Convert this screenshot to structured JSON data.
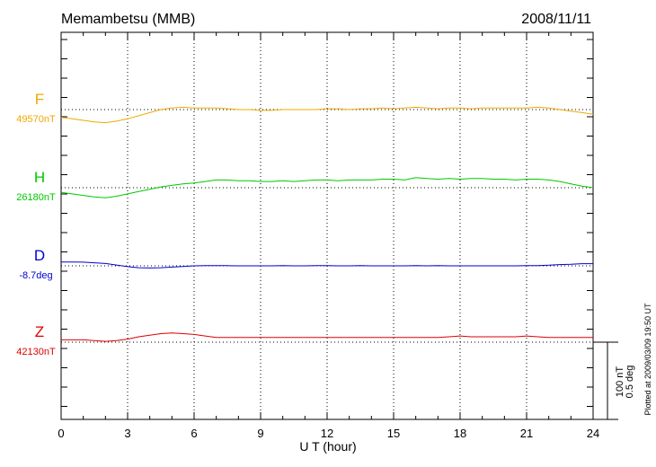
{
  "chart_data": {
    "type": "line",
    "title": "Memambetsu (MMB)",
    "date": "2008/11/11",
    "xlabel": "U T (hour)",
    "xlim": [
      0,
      24
    ],
    "xticks": [
      0,
      3,
      6,
      9,
      12,
      15,
      18,
      21,
      24
    ],
    "grid": true,
    "scale_bar": {
      "line1": "100 nT",
      "line2": "0.5 deg",
      "nT_per_unit": 100,
      "deg_per_unit": 0.5
    },
    "footer_note": "Plotted at 2009/03/09 19:50 UT",
    "series": [
      {
        "name": "F",
        "baseline_label": "49570nT",
        "color": "#f0a800",
        "x": [
          0,
          0.5,
          1,
          1.5,
          2,
          2.5,
          3,
          3.5,
          4,
          4.5,
          5,
          5.5,
          6,
          6.5,
          7,
          7.5,
          8,
          8.5,
          9,
          9.5,
          10,
          10.5,
          11,
          11.5,
          12,
          12.5,
          13,
          13.5,
          14,
          14.5,
          15,
          15.5,
          16,
          16.5,
          17,
          17.5,
          18,
          18.5,
          19,
          19.5,
          20,
          20.5,
          21,
          21.5,
          22,
          22.5,
          23,
          23.5,
          24
        ],
        "values": [
          -10,
          -12,
          -14,
          -16,
          -17,
          -15,
          -12,
          -8,
          -4,
          0,
          2,
          3,
          2,
          2,
          2,
          1,
          0,
          0,
          -1,
          -1,
          0,
          0,
          0,
          0,
          1,
          1,
          0,
          1,
          1,
          2,
          1,
          2,
          3,
          2,
          1,
          2,
          2,
          1,
          2,
          2,
          2,
          2,
          2,
          3,
          2,
          0,
          -2,
          -4,
          -6
        ]
      },
      {
        "name": "H",
        "baseline_label": "26180nT",
        "color": "#00c800",
        "x": [
          0,
          0.5,
          1,
          1.5,
          2,
          2.5,
          3,
          3.5,
          4,
          4.5,
          5,
          5.5,
          6,
          6.5,
          7,
          7.5,
          8,
          8.5,
          9,
          9.5,
          10,
          10.5,
          11,
          11.5,
          12,
          12.5,
          13,
          13.5,
          14,
          14.5,
          15,
          15.5,
          16,
          16.5,
          17,
          17.5,
          18,
          18.5,
          19,
          19.5,
          20,
          20.5,
          21,
          21.5,
          22,
          22.5,
          23,
          23.5,
          24
        ],
        "values": [
          -6,
          -8,
          -10,
          -12,
          -13,
          -11,
          -8,
          -5,
          -2,
          1,
          3,
          5,
          6,
          8,
          10,
          10,
          9,
          9,
          8,
          8,
          9,
          8,
          9,
          10,
          10,
          9,
          10,
          10,
          10,
          11,
          11,
          10,
          13,
          12,
          11,
          12,
          11,
          12,
          12,
          11,
          11,
          10,
          11,
          11,
          10,
          8,
          5,
          2,
          0
        ]
      },
      {
        "name": "D",
        "baseline_label": "-8.7deg",
        "color": "#0000d0",
        "x": [
          0,
          0.5,
          1,
          1.5,
          2,
          2.5,
          3,
          3.5,
          4,
          4.5,
          5,
          5.5,
          6,
          6.5,
          7,
          7.5,
          8,
          8.5,
          9,
          9.5,
          10,
          10.5,
          11,
          11.5,
          12,
          12.5,
          13,
          13.5,
          14,
          14.5,
          15,
          15.5,
          16,
          16.5,
          17,
          17.5,
          18,
          18.5,
          19,
          19.5,
          20,
          20.5,
          21,
          21.5,
          22,
          22.5,
          23,
          23.5,
          24
        ],
        "values": [
          0.025,
          0.025,
          0.024,
          0.02,
          0.015,
          0.005,
          -0.005,
          -0.012,
          -0.014,
          -0.012,
          -0.008,
          -0.004,
          0.0,
          0.001,
          0.001,
          0.001,
          0.0,
          0.0,
          0.0,
          0.0,
          0.001,
          0.0,
          0.0,
          0.001,
          0.001,
          0.0,
          0.0,
          0.001,
          0.0,
          0.0,
          0.0,
          0.0,
          0.001,
          0.0,
          0.001,
          0.0,
          0.0,
          0.0,
          0.0,
          0.0,
          0.0,
          0.0,
          0.001,
          0.002,
          0.004,
          0.008,
          0.01,
          0.014,
          0.014
        ]
      },
      {
        "name": "Z",
        "baseline_label": "42130nT",
        "color": "#dd0000",
        "x": [
          0,
          0.5,
          1,
          1.5,
          2,
          2.5,
          3,
          3.5,
          4,
          4.5,
          5,
          5.5,
          6,
          6.5,
          7,
          7.5,
          8,
          8.5,
          9,
          9.5,
          10,
          10.5,
          11,
          11.5,
          12,
          12.5,
          13,
          13.5,
          14,
          14.5,
          15,
          15.5,
          16,
          16.5,
          17,
          17.5,
          18,
          18.5,
          19,
          19.5,
          20,
          20.5,
          21,
          21.5,
          22,
          22.5,
          23,
          23.5,
          24
        ],
        "values": [
          3,
          3,
          3,
          2,
          1,
          2,
          4,
          7,
          9,
          11,
          12,
          11,
          10,
          8,
          6,
          6,
          6,
          6,
          6,
          6,
          6,
          6,
          6,
          6,
          6,
          6,
          6,
          6,
          6,
          6,
          6,
          6,
          6,
          6,
          6,
          7,
          8,
          7,
          7,
          7,
          7,
          7,
          8,
          7,
          6,
          6,
          6,
          6,
          6
        ]
      }
    ]
  }
}
